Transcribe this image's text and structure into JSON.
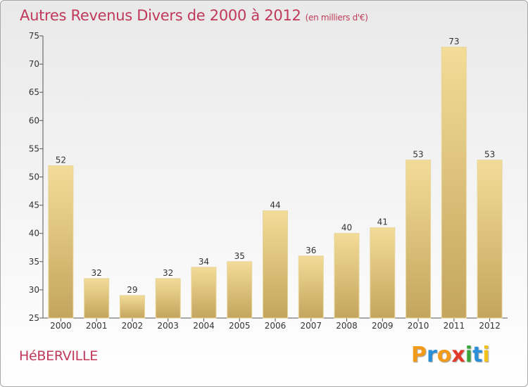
{
  "title": "Autres Revenus Divers de 2000 à 2012",
  "unit": "(en milliers d'€)",
  "place": "HéBERVILLE",
  "logo": {
    "letters": [
      "P",
      "r",
      "o",
      "x",
      "i",
      "t",
      "i"
    ],
    "colors": [
      "#f29a1a",
      "#2a8fd6",
      "#f29a1a",
      "#e23a2a",
      "#3aa53a",
      "#2a8fd6",
      "#f2c21a"
    ]
  },
  "colors": {
    "title": "#c0395a",
    "bar_light": "#f3dc98",
    "bar_dark": "#c3a55e",
    "axis": "#555555"
  },
  "chart_data": {
    "type": "bar",
    "categories": [
      "2000",
      "2001",
      "2002",
      "2003",
      "2004",
      "2005",
      "2006",
      "2007",
      "2008",
      "2009",
      "2010",
      "2011",
      "2012"
    ],
    "values": [
      52,
      32,
      29,
      32,
      34,
      35,
      44,
      36,
      40,
      41,
      53,
      73,
      53
    ],
    "ylim": [
      25,
      75
    ],
    "yticks": [
      25,
      30,
      35,
      40,
      45,
      50,
      55,
      60,
      65,
      70,
      75
    ],
    "grid": false,
    "data_labels": true
  }
}
